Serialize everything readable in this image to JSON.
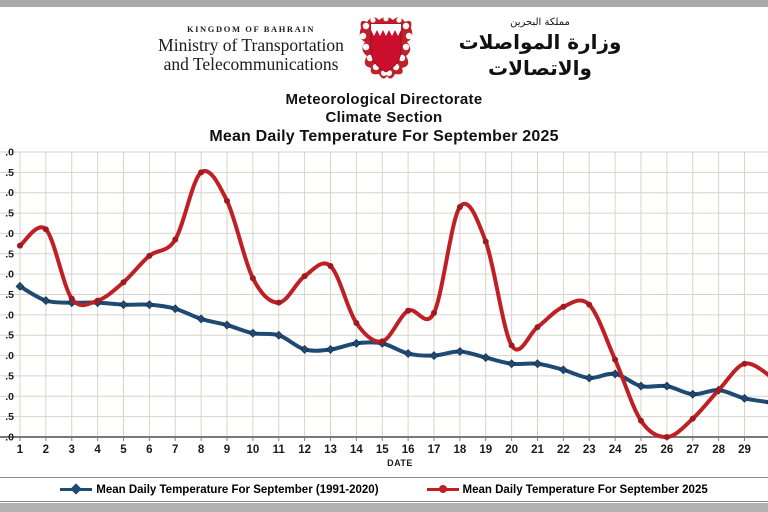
{
  "page": {
    "top_bar_color": "#a9a9a9",
    "bottom_bar_color": "#b2b2b2",
    "plot_gridline_color": "#d6d4c9",
    "plot_axis_color": "#4c4c4c"
  },
  "header": {
    "kingdom_line": "KINGDOM OF BAHRAIN",
    "ministry_line1": "Ministry of Transportation",
    "ministry_line2": "and Telecommunications",
    "logo_icon": "bahrain-coat-of-arms",
    "arabic_small": "مملكة البحرين",
    "arabic_ministry": "وزارة المواصلات والاتصالات"
  },
  "titles": {
    "line1": "Meteorological Directorate",
    "line2": "Climate Section",
    "line3": "Mean Daily Temperature For September 2025"
  },
  "axis": {
    "x_label": "DATE"
  },
  "legend": {
    "items": [
      {
        "label": "Mean Daily Temperature For September (1991-2020)",
        "color": "#1e4a73",
        "marker": "diamond"
      },
      {
        "label": "Mean Daily Temperature For September 2025",
        "color": "#bf2026",
        "marker": "circle"
      }
    ]
  },
  "chart_data": {
    "type": "line",
    "title": "Mean Daily Temperature For September 2025",
    "xlabel": "DATE",
    "ylabel": "",
    "x": [
      1,
      2,
      3,
      4,
      5,
      6,
      7,
      8,
      9,
      10,
      11,
      12,
      13,
      14,
      15,
      16,
      17,
      18,
      19,
      20,
      21,
      22,
      23,
      24,
      25,
      26,
      27,
      28,
      29,
      30
    ],
    "x_tick_labels": [
      "1",
      "2",
      "3",
      "4",
      "5",
      "6",
      "7",
      "8",
      "9",
      "10",
      "11",
      "12",
      "13",
      "14",
      "15",
      "16",
      "17",
      "18",
      "19",
      "20",
      "21",
      "22",
      "23",
      "24",
      "25",
      "26",
      "27",
      "28",
      "29"
    ],
    "series": [
      {
        "name": "Mean Daily Temperature For September (1991-2020)",
        "color": "#1e4a73",
        "marker": "diamond",
        "values": [
          33.7,
          33.35,
          33.3,
          33.3,
          33.25,
          33.25,
          33.15,
          32.9,
          32.75,
          32.55,
          32.5,
          32.15,
          32.15,
          32.3,
          32.3,
          32.05,
          32.0,
          32.1,
          31.95,
          31.8,
          31.8,
          31.65,
          31.45,
          31.55,
          31.25,
          31.25,
          31.05,
          31.15,
          30.95,
          30.85
        ]
      },
      {
        "name": "Mean Daily Temperature For September 2025",
        "color": "#bf2026",
        "marker": "circle",
        "values": [
          34.7,
          35.1,
          33.4,
          33.35,
          33.8,
          34.45,
          34.85,
          36.5,
          35.8,
          33.9,
          33.3,
          33.95,
          34.2,
          32.8,
          32.35,
          33.1,
          33.05,
          35.65,
          34.8,
          32.25,
          32.7,
          33.2,
          33.25,
          31.9,
          30.4,
          30.0,
          30.45,
          31.15,
          31.8,
          31.5
        ]
      }
    ],
    "ylim": [
      30.0,
      37.0
    ],
    "y_tick_step": 0.5,
    "y_tick_labels_cropped": true,
    "grid": true,
    "smooth": true,
    "legend_position": "bottom",
    "note_right_edge_cut": "day 30 tick cut off at right edge"
  }
}
